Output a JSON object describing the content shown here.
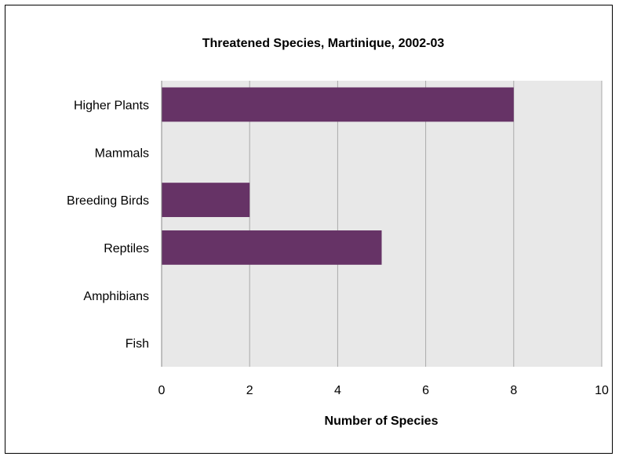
{
  "chart_data": {
    "type": "bar",
    "orientation": "horizontal",
    "title": "Threatened Species, Martinique, 2002-03",
    "xlabel": "Number of Species",
    "ylabel": "",
    "categories": [
      "Higher Plants",
      "Mammals",
      "Breeding Birds",
      "Reptiles",
      "Amphibians",
      "Fish"
    ],
    "values": [
      8,
      0,
      2,
      5,
      0,
      0
    ],
    "xlim": [
      0,
      10
    ],
    "xticks": [
      0,
      2,
      4,
      6,
      8,
      10
    ],
    "grid": "vertical",
    "bar_color": "#663366",
    "plot_background": "#e8e8e8",
    "legend": "none"
  }
}
